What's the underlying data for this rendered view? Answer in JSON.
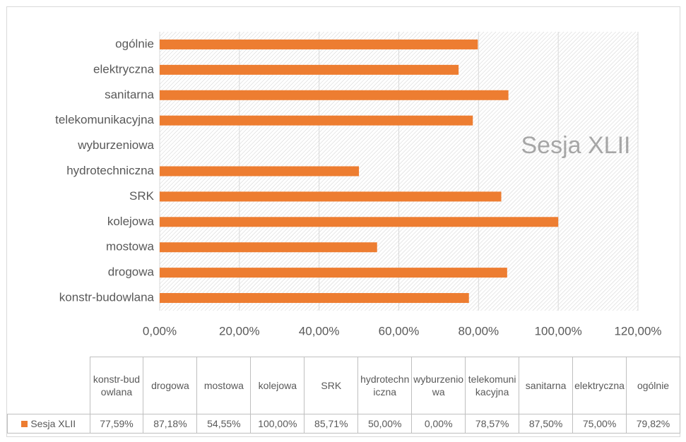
{
  "chart_data": {
    "type": "bar",
    "orientation": "horizontal",
    "title": "Sesja XLII",
    "categories": [
      "konstr-budowlana",
      "drogowa",
      "mostowa",
      "kolejowa",
      "SRK",
      "hydrotechniczna",
      "wyburzeniowa",
      "telekomunikacyjna",
      "sanitarna",
      "elektryczna",
      "ogólnie"
    ],
    "series": [
      {
        "name": "Sesja XLII",
        "color": "#ed7d31",
        "values": [
          77.59,
          87.18,
          54.55,
          100,
          85.71,
          50,
          0,
          78.57,
          87.5,
          75,
          79.82
        ],
        "value_labels": [
          "77,59%",
          "87,18%",
          "54,55%",
          "100,00%",
          "85,71%",
          "50,00%",
          "0,00%",
          "78,57%",
          "87,50%",
          "75,00%",
          "79,82%"
        ]
      }
    ],
    "xlim": [
      0,
      120
    ],
    "xticks": [
      {
        "value": 0,
        "label": "0,00%"
      },
      {
        "value": 20,
        "label": "20,00%"
      },
      {
        "value": 40,
        "label": "40,00%"
      },
      {
        "value": 60,
        "label": "60,00%"
      },
      {
        "value": 80,
        "label": "80,00%"
      },
      {
        "value": 100,
        "label": "100,00%"
      },
      {
        "value": 120,
        "label": "120,00%"
      }
    ],
    "grid": true,
    "data_table": true
  }
}
